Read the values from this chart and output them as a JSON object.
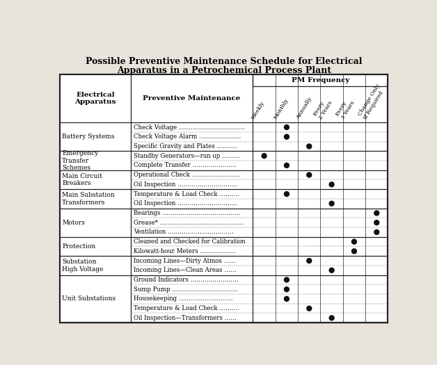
{
  "title_line1": "Possible Preventive Maintenance Schedule for Electrical",
  "title_line2": "Apparatus in a Petrochemical Process Plant",
  "col_headers": [
    "Weekly",
    "Monthly",
    "Annually",
    "Every\n2 Years",
    "Every\n3 Years",
    "Change Only\nIf Required"
  ],
  "col1_header": "Electrical\nApparatus",
  "col2_header": "Preventive Maintenance",
  "pm_freq_label": "PM Frequency",
  "rows": [
    {
      "apparatus": "Battery Systems",
      "tasks": [
        {
          "text": "Check Voltage ……………………………",
          "dots": [
            0,
            1,
            0,
            0,
            0,
            0
          ]
        },
        {
          "text": "Check Voltage Alarm …………………",
          "dots": [
            0,
            1,
            0,
            0,
            0,
            0
          ]
        },
        {
          "text": "Specific Gravity and Plates ……….",
          "dots": [
            0,
            0,
            1,
            0,
            0,
            0
          ]
        }
      ]
    },
    {
      "apparatus": "Emergency\nTransfer\nSchemes",
      "tasks": [
        {
          "text": "Standby Generators—run up ………",
          "dots": [
            1,
            0,
            0,
            0,
            0,
            0
          ]
        },
        {
          "text": "Complete Transfer ………………….",
          "dots": [
            0,
            1,
            0,
            0,
            0,
            0
          ]
        }
      ]
    },
    {
      "apparatus": "Main Circuit\nBreakers",
      "tasks": [
        {
          "text": "Operational Check ……………………",
          "dots": [
            0,
            0,
            1,
            0,
            0,
            0
          ]
        },
        {
          "text": "Oil Inspection …………………………",
          "dots": [
            0,
            0,
            0,
            1,
            0,
            0
          ]
        }
      ]
    },
    {
      "apparatus": "Main Substation\nTransformers",
      "tasks": [
        {
          "text": "Temperature & Load Check ……….",
          "dots": [
            0,
            1,
            0,
            0,
            0,
            0
          ]
        },
        {
          "text": "Oil Inspection …………………………",
          "dots": [
            0,
            0,
            0,
            1,
            0,
            0
          ]
        }
      ]
    },
    {
      "apparatus": "Motors",
      "tasks": [
        {
          "text": "Bearings …………………………………",
          "dots": [
            0,
            0,
            0,
            0,
            0,
            1
          ]
        },
        {
          "text": "Grease* ……………………………………",
          "dots": [
            0,
            0,
            0,
            0,
            0,
            1
          ]
        },
        {
          "text": "Ventilation ……………………………",
          "dots": [
            0,
            0,
            0,
            0,
            0,
            1
          ]
        }
      ]
    },
    {
      "apparatus": "Protection",
      "tasks": [
        {
          "text": "Cleaned and Checked for Calibration",
          "dots": [
            0,
            0,
            0,
            0,
            1,
            0
          ]
        },
        {
          "text": "Kilowatt-hour Meters ………………",
          "dots": [
            0,
            0,
            0,
            0,
            1,
            0
          ]
        }
      ]
    },
    {
      "apparatus": "Substation\nHigh Voltage",
      "tasks": [
        {
          "text": "Incoming Lines—Dirty Atmos ……",
          "dots": [
            0,
            0,
            1,
            0,
            0,
            0
          ]
        },
        {
          "text": "Incoming Lines—Clean Areas ……",
          "dots": [
            0,
            0,
            0,
            1,
            0,
            0
          ]
        }
      ]
    },
    {
      "apparatus": "Unit Substations",
      "tasks": [
        {
          "text": "Ground Indicators ……………………",
          "dots": [
            0,
            1,
            0,
            0,
            0,
            0
          ]
        },
        {
          "text": "Sump Pump ……………………………",
          "dots": [
            0,
            1,
            0,
            0,
            0,
            0
          ]
        },
        {
          "text": "Housekeeping ………………………",
          "dots": [
            0,
            1,
            0,
            0,
            0,
            0
          ]
        },
        {
          "text": "Temperature & Load Check ……….",
          "dots": [
            0,
            0,
            1,
            0,
            0,
            0
          ]
        },
        {
          "text": "Oil Inspection—Transformers ……",
          "dots": [
            0,
            0,
            0,
            1,
            0,
            0
          ]
        }
      ]
    }
  ],
  "bg_color": "#e8e4dc",
  "table_bg": "#ffffff",
  "text_color": "#000000",
  "dot_color": "#111111",
  "line_color": "#222222",
  "title_color": "#000000",
  "title_fontsize": 9.0,
  "header_fontsize": 7.5,
  "body_fontsize": 6.2,
  "apparatus_fontsize": 6.5
}
